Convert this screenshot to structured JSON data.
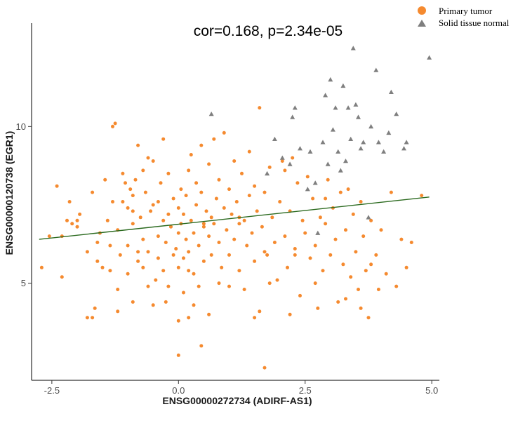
{
  "chart_data": {
    "type": "scatter",
    "title": "cor=0.168, p=2.34e-05",
    "xlabel": "ENSG00000272734 (ADIRF-AS1)",
    "ylabel": "ENSG00000120738 (EGR1)",
    "xlim": [
      -2.9,
      5.15
    ],
    "ylim": [
      1.9,
      13.3
    ],
    "x_ticks": [
      -2.5,
      0.0,
      2.5,
      5.0
    ],
    "x_tick_labels": [
      "-2.5",
      "0.0",
      "2.5",
      "5.0"
    ],
    "y_ticks": [
      5,
      10
    ],
    "y_tick_labels": [
      "5",
      "10"
    ],
    "grid": false,
    "legend_position": "top-right",
    "colors": {
      "primary": "#f58a2f",
      "normal": "#7f7f7f",
      "fit": "#2b6a1f"
    },
    "series": [
      {
        "name": "Primary tumor",
        "marker": "circle",
        "points": [
          [
            -2.7,
            5.5
          ],
          [
            -2.3,
            5.2
          ],
          [
            -2.3,
            6.5
          ],
          [
            -2.4,
            8.1
          ],
          [
            -2.2,
            7.0
          ],
          [
            -2.1,
            6.9
          ],
          [
            -2.0,
            6.8
          ],
          [
            -2.0,
            7.0
          ],
          [
            -2.15,
            7.6
          ],
          [
            -1.95,
            7.2
          ],
          [
            -1.8,
            6.0
          ],
          [
            -1.7,
            7.9
          ],
          [
            -1.65,
            4.2
          ],
          [
            -1.7,
            3.9
          ],
          [
            -1.6,
            5.7
          ],
          [
            -1.55,
            6.6
          ],
          [
            -1.5,
            5.5
          ],
          [
            -1.45,
            8.3
          ],
          [
            -1.4,
            7.0
          ],
          [
            -1.35,
            5.4
          ],
          [
            -1.35,
            6.2
          ],
          [
            -1.3,
            10.0
          ],
          [
            -1.25,
            10.1
          ],
          [
            -1.2,
            4.1
          ],
          [
            -1.2,
            6.7
          ],
          [
            -1.2,
            4.8
          ],
          [
            -1.15,
            5.9
          ],
          [
            -1.1,
            8.5
          ],
          [
            -1.05,
            8.2
          ],
          [
            -1.0,
            7.4
          ],
          [
            -1.0,
            6.2
          ],
          [
            -1.0,
            5.3
          ],
          [
            -0.95,
            8.0
          ],
          [
            -0.9,
            4.4
          ],
          [
            -0.9,
            6.9
          ],
          [
            -0.9,
            7.8
          ],
          [
            -0.85,
            8.3
          ],
          [
            -0.8,
            9.4
          ],
          [
            -0.8,
            5.7
          ],
          [
            -0.75,
            7.1
          ],
          [
            -0.7,
            6.4
          ],
          [
            -0.7,
            5.5
          ],
          [
            -0.7,
            8.6
          ],
          [
            -0.65,
            7.9
          ],
          [
            -0.6,
            9.0
          ],
          [
            -0.6,
            6.0
          ],
          [
            -0.55,
            7.3
          ],
          [
            -0.5,
            7.5
          ],
          [
            -0.5,
            8.9
          ],
          [
            -0.45,
            5.1
          ],
          [
            -0.4,
            7.6
          ],
          [
            -0.4,
            6.5
          ],
          [
            -0.4,
            5.8
          ],
          [
            -0.35,
            8.2
          ],
          [
            -0.3,
            9.6
          ],
          [
            -0.3,
            7.0
          ],
          [
            -0.25,
            6.3
          ],
          [
            -0.25,
            4.4
          ],
          [
            -0.2,
            7.2
          ],
          [
            -0.2,
            8.5
          ],
          [
            -0.15,
            6.8
          ],
          [
            -0.1,
            5.9
          ],
          [
            -0.1,
            7.7
          ],
          [
            -0.05,
            6.1
          ],
          [
            0.0,
            7.4
          ],
          [
            0.0,
            6.6
          ],
          [
            0.0,
            5.5
          ],
          [
            0.05,
            8.0
          ],
          [
            0.05,
            6.9
          ],
          [
            0.1,
            7.2
          ],
          [
            0.1,
            5.8
          ],
          [
            0.1,
            4.7
          ],
          [
            0.15,
            6.4
          ],
          [
            0.15,
            7.8
          ],
          [
            0.2,
            8.6
          ],
          [
            0.2,
            6.0
          ],
          [
            0.25,
            7.0
          ],
          [
            0.25,
            9.1
          ],
          [
            0.3,
            6.6
          ],
          [
            0.3,
            5.3
          ],
          [
            0.35,
            7.5
          ],
          [
            0.35,
            8.2
          ],
          [
            0.4,
            6.2
          ],
          [
            0.4,
            4.9
          ],
          [
            0.45,
            7.9
          ],
          [
            0.45,
            9.4
          ],
          [
            0.5,
            6.8
          ],
          [
            0.5,
            5.7
          ],
          [
            0.55,
            7.3
          ],
          [
            0.6,
            6.5
          ],
          [
            0.6,
            8.8
          ],
          [
            0.65,
            5.9
          ],
          [
            0.65,
            7.1
          ],
          [
            0.7,
            9.6
          ],
          [
            0.7,
            6.9
          ],
          [
            0.75,
            7.7
          ],
          [
            0.8,
            6.3
          ],
          [
            0.8,
            8.3
          ],
          [
            0.85,
            5.5
          ],
          [
            0.9,
            7.4
          ],
          [
            0.9,
            9.8
          ],
          [
            0.95,
            6.7
          ],
          [
            1.0,
            8.0
          ],
          [
            1.0,
            5.9
          ],
          [
            1.05,
            7.2
          ],
          [
            1.1,
            6.4
          ],
          [
            1.1,
            8.9
          ],
          [
            1.15,
            7.6
          ],
          [
            1.2,
            5.4
          ],
          [
            1.2,
            6.9
          ],
          [
            1.25,
            8.5
          ],
          [
            1.3,
            7.0
          ],
          [
            1.3,
            4.8
          ],
          [
            1.35,
            6.2
          ],
          [
            1.4,
            9.2
          ],
          [
            1.4,
            7.8
          ],
          [
            1.45,
            6.6
          ],
          [
            1.5,
            5.7
          ],
          [
            1.5,
            8.1
          ],
          [
            1.55,
            7.3
          ],
          [
            1.6,
            10.6
          ],
          [
            1.6,
            4.1
          ],
          [
            1.65,
            6.8
          ],
          [
            1.7,
            2.3
          ],
          [
            1.7,
            7.9
          ],
          [
            1.75,
            5.9
          ],
          [
            1.8,
            8.7
          ],
          [
            1.85,
            7.1
          ],
          [
            1.9,
            6.3
          ],
          [
            1.95,
            5.1
          ],
          [
            2.0,
            7.6
          ],
          [
            2.05,
            8.9
          ],
          [
            2.1,
            6.5
          ],
          [
            2.15,
            5.5
          ],
          [
            2.2,
            7.3
          ],
          [
            2.25,
            9.0
          ],
          [
            2.3,
            6.1
          ],
          [
            2.35,
            8.2
          ],
          [
            2.4,
            4.6
          ],
          [
            2.45,
            7.0
          ],
          [
            2.5,
            6.6
          ],
          [
            2.55,
            8.4
          ],
          [
            2.6,
            5.8
          ],
          [
            2.65,
            7.7
          ],
          [
            2.7,
            6.2
          ],
          [
            2.75,
            4.2
          ],
          [
            2.8,
            7.1
          ],
          [
            2.85,
            5.4
          ],
          [
            2.9,
            6.9
          ],
          [
            2.95,
            8.3
          ],
          [
            3.0,
            5.9
          ],
          [
            3.05,
            7.4
          ],
          [
            3.1,
            6.4
          ],
          [
            3.15,
            4.4
          ],
          [
            3.2,
            7.9
          ],
          [
            3.25,
            5.6
          ],
          [
            3.3,
            6.7
          ],
          [
            3.35,
            8.0
          ],
          [
            3.4,
            5.2
          ],
          [
            3.45,
            7.2
          ],
          [
            3.5,
            6.0
          ],
          [
            3.55,
            4.8
          ],
          [
            3.6,
            7.6
          ],
          [
            3.65,
            6.5
          ],
          [
            3.7,
            5.4
          ],
          [
            3.75,
            3.9
          ],
          [
            3.8,
            7.0
          ],
          [
            3.9,
            5.9
          ],
          [
            4.0,
            6.7
          ],
          [
            4.1,
            5.3
          ],
          [
            4.2,
            7.9
          ],
          [
            4.3,
            4.9
          ],
          [
            4.4,
            6.4
          ],
          [
            4.6,
            6.3
          ],
          [
            4.8,
            7.8
          ],
          [
            0.0,
            3.8
          ],
          [
            0.0,
            2.7
          ],
          [
            0.2,
            3.9
          ],
          [
            0.45,
            3.0
          ],
          [
            -0.5,
            4.3
          ],
          [
            -1.8,
            3.9
          ],
          [
            -1.3,
            7.6
          ],
          [
            -0.6,
            4.9
          ],
          [
            0.3,
            4.3
          ],
          [
            1.0,
            4.9
          ],
          [
            1.5,
            3.9
          ],
          [
            2.7,
            5.0
          ],
          [
            3.3,
            4.5
          ],
          [
            3.95,
            4.8
          ],
          [
            -2.55,
            6.5
          ],
          [
            -1.6,
            6.3
          ],
          [
            -0.2,
            4.9
          ],
          [
            0.6,
            4.0
          ],
          [
            1.8,
            5.0
          ],
          [
            2.2,
            4.0
          ],
          [
            3.6,
            4.2
          ],
          [
            4.5,
            5.5
          ],
          [
            -0.8,
            6.0
          ],
          [
            0.8,
            5.0
          ],
          [
            2.1,
            8.6
          ],
          [
            -1.1,
            7.6
          ],
          [
            0.5,
            6.9
          ],
          [
            1.2,
            7.1
          ],
          [
            -0.3,
            5.4
          ],
          [
            2.9,
            7.7
          ],
          [
            3.8,
            5.6
          ],
          [
            1.7,
            6.0
          ],
          [
            -0.9,
            7.3
          ],
          [
            0.2,
            5.4
          ],
          [
            2.3,
            5.9
          ]
        ]
      },
      {
        "name": "Solid tissue normal",
        "marker": "triangle",
        "points": [
          [
            0.65,
            10.4
          ],
          [
            1.75,
            8.5
          ],
          [
            1.9,
            9.6
          ],
          [
            2.05,
            9.0
          ],
          [
            2.2,
            8.8
          ],
          [
            2.25,
            10.3
          ],
          [
            2.3,
            10.6
          ],
          [
            2.4,
            9.3
          ],
          [
            2.55,
            8.0
          ],
          [
            2.6,
            9.2
          ],
          [
            2.7,
            8.2
          ],
          [
            2.75,
            6.6
          ],
          [
            2.85,
            9.5
          ],
          [
            2.9,
            11.0
          ],
          [
            2.95,
            8.8
          ],
          [
            3.0,
            11.5
          ],
          [
            3.05,
            9.9
          ],
          [
            3.1,
            10.6
          ],
          [
            3.15,
            9.2
          ],
          [
            3.2,
            8.6
          ],
          [
            3.25,
            11.3
          ],
          [
            3.3,
            8.9
          ],
          [
            3.35,
            10.6
          ],
          [
            3.4,
            9.6
          ],
          [
            3.45,
            12.5
          ],
          [
            3.5,
            10.7
          ],
          [
            3.55,
            10.3
          ],
          [
            3.6,
            9.3
          ],
          [
            3.65,
            9.5
          ],
          [
            3.75,
            7.1
          ],
          [
            3.8,
            10.0
          ],
          [
            3.9,
            11.8
          ],
          [
            3.95,
            9.5
          ],
          [
            4.05,
            9.2
          ],
          [
            4.15,
            9.8
          ],
          [
            4.2,
            11.1
          ],
          [
            4.3,
            10.4
          ],
          [
            4.45,
            9.3
          ],
          [
            4.5,
            9.5
          ],
          [
            4.95,
            12.2
          ]
        ]
      }
    ],
    "fit_line": {
      "x": [
        -2.75,
        4.95
      ],
      "y": [
        6.4,
        7.75
      ]
    }
  }
}
